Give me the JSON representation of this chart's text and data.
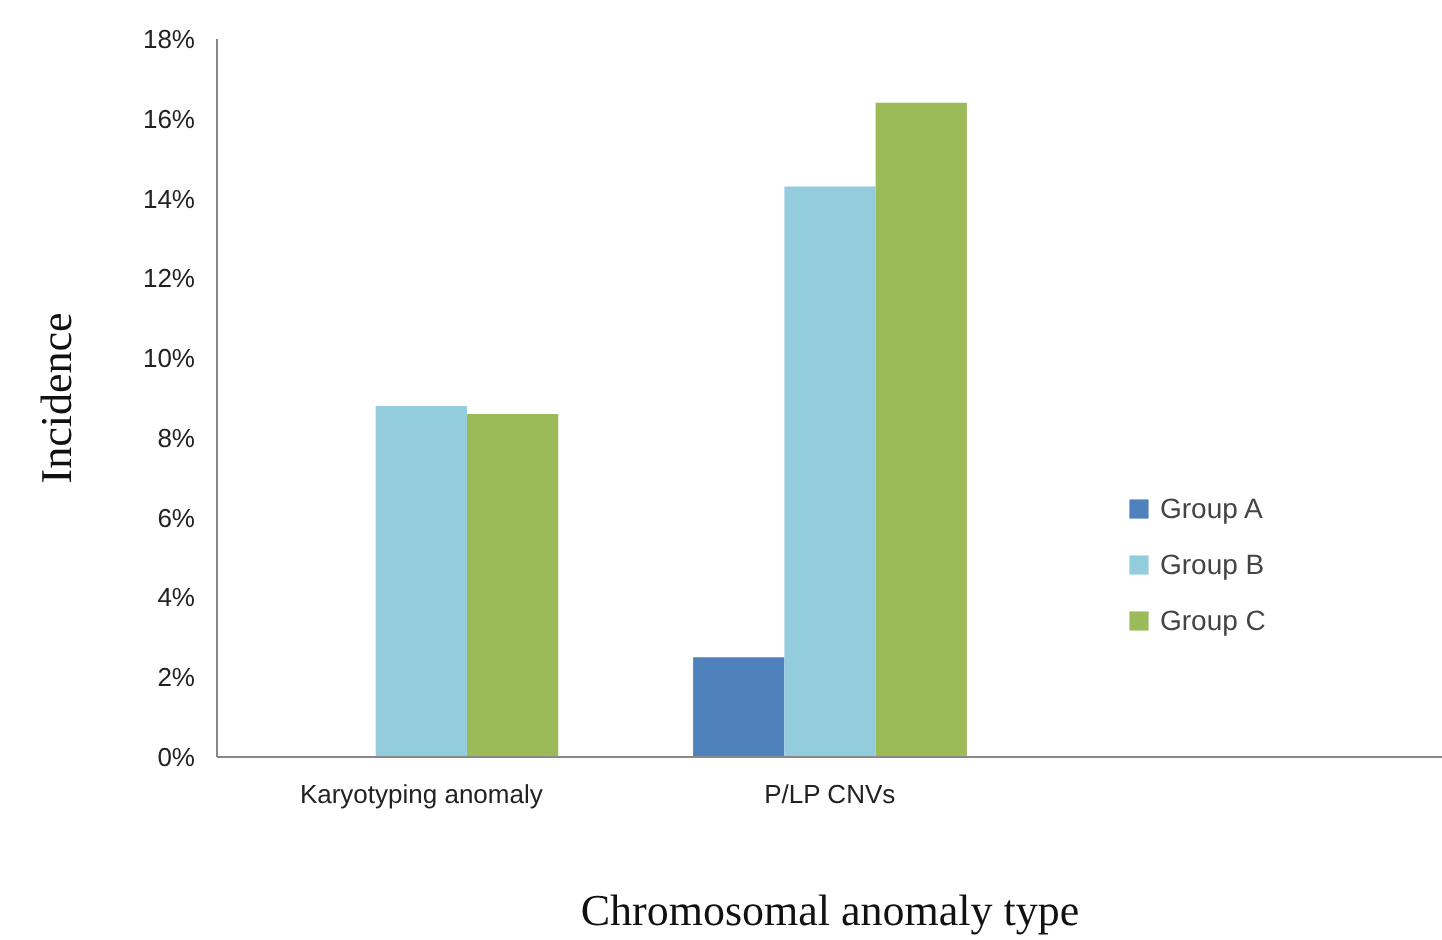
{
  "chart_data": {
    "type": "bar",
    "xlabel": "Chromosomal anomaly type",
    "ylabel": "Incidence",
    "categories": [
      "Karyotyping anomaly",
      "P/LP CNVs",
      null
    ],
    "series": [
      {
        "name": "Group A",
        "color": "#4f81bd",
        "values": [
          0,
          2.5,
          null
        ]
      },
      {
        "name": "Group B",
        "color": "#93cddd",
        "values": [
          8.8,
          14.3,
          null
        ]
      },
      {
        "name": "Group C",
        "color": "#9bbb59",
        "values": [
          8.6,
          16.4,
          null
        ]
      }
    ],
    "ylim": [
      0,
      18
    ],
    "yticks": [
      {
        "value": 0,
        "label": "0%"
      },
      {
        "value": 2,
        "label": "2%"
      },
      {
        "value": 4,
        "label": "4%"
      },
      {
        "value": 6,
        "label": "6%"
      },
      {
        "value": 8,
        "label": "8%"
      },
      {
        "value": 10,
        "label": "10%"
      },
      {
        "value": 12,
        "label": "12%"
      },
      {
        "value": 14,
        "label": "14%"
      },
      {
        "value": 16,
        "label": "16%"
      },
      {
        "value": 18,
        "label": "18%"
      }
    ],
    "grid": false,
    "legend": "right"
  }
}
